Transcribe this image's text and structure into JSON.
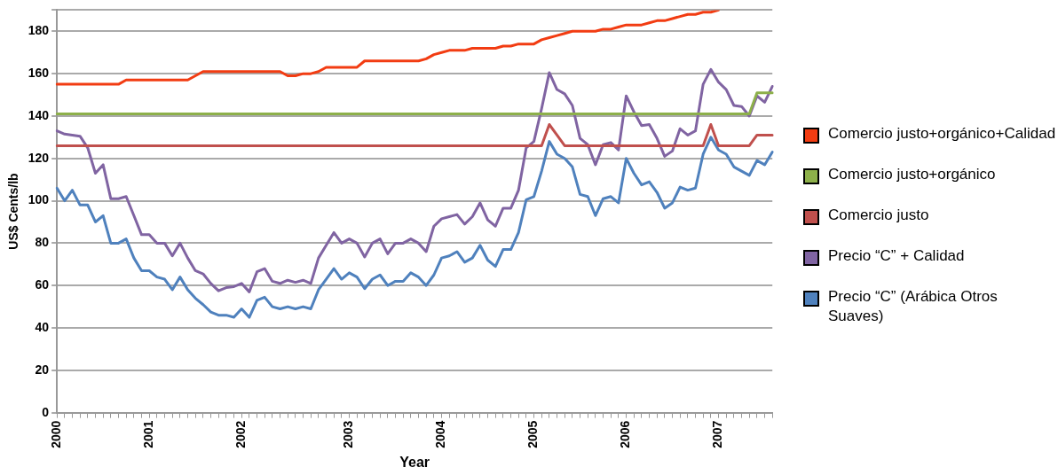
{
  "chart_data": {
    "type": "line",
    "xlabel": "Year",
    "ylabel": "US$ Cents/lb",
    "categories": [
      "2000",
      null,
      null,
      null,
      null,
      null,
      null,
      null,
      null,
      null,
      null,
      null,
      "2001",
      null,
      null,
      null,
      null,
      null,
      null,
      null,
      null,
      null,
      null,
      null,
      "2002",
      null,
      null,
      null,
      null,
      null,
      null,
      null,
      null,
      null,
      null,
      null,
      null,
      null,
      "2003",
      null,
      null,
      null,
      null,
      null,
      null,
      null,
      null,
      null,
      null,
      null,
      "2004",
      null,
      null,
      null,
      null,
      null,
      null,
      null,
      null,
      null,
      null,
      null,
      "2005",
      null,
      null,
      null,
      null,
      null,
      null,
      null,
      null,
      null,
      null,
      null,
      "2006",
      null,
      null,
      null,
      null,
      null,
      null,
      null,
      null,
      null,
      null,
      null,
      "2007",
      null,
      null,
      null,
      null,
      null,
      null,
      null
    ],
    "series": [
      {
        "name": "Comercio justo+orgánico+Calidad",
        "color": "#f23c12",
        "values": [
          155,
          155,
          155,
          155,
          155,
          155,
          155,
          155,
          155,
          157,
          157,
          157,
          157,
          157,
          157,
          157,
          157,
          157,
          159,
          161,
          161,
          161,
          161,
          161,
          161,
          161,
          161,
          161,
          161,
          161,
          159,
          159,
          160,
          160,
          161,
          163,
          163,
          163,
          163,
          163,
          166,
          166,
          166,
          166,
          166,
          166,
          166,
          166,
          167,
          169,
          170,
          171,
          171,
          171,
          172,
          172,
          172,
          172,
          173,
          173,
          174,
          174,
          174,
          176,
          177,
          178,
          179,
          180,
          180,
          180,
          180,
          181,
          181,
          182,
          183,
          183,
          183,
          184,
          185,
          185,
          186,
          187,
          188,
          188,
          189,
          189,
          190,
          null,
          null,
          null,
          null,
          null,
          null,
          null
        ]
      },
      {
        "name": "Comercio justo+orgánico",
        "color": "#8db04a",
        "values": [
          141,
          141,
          141,
          141,
          141,
          141,
          141,
          141,
          141,
          141,
          141,
          141,
          141,
          141,
          141,
          141,
          141,
          141,
          141,
          141,
          141,
          141,
          141,
          141,
          141,
          141,
          141,
          141,
          141,
          141,
          141,
          141,
          141,
          141,
          141,
          141,
          141,
          141,
          141,
          141,
          141,
          141,
          141,
          141,
          141,
          141,
          141,
          141,
          141,
          141,
          141,
          141,
          141,
          141,
          141,
          141,
          141,
          141,
          141,
          141,
          141,
          141,
          141,
          141,
          141,
          141,
          141,
          141,
          141,
          141,
          141,
          141,
          141,
          141,
          141,
          141,
          141,
          141,
          141,
          141,
          141,
          141,
          141,
          141,
          141,
          141,
          141,
          141,
          141,
          141,
          141,
          151,
          151,
          151
        ]
      },
      {
        "name": "Comercio justo",
        "color": "#c0504d",
        "values": [
          126,
          126,
          126,
          126,
          126,
          126,
          126,
          126,
          126,
          126,
          126,
          126,
          126,
          126,
          126,
          126,
          126,
          126,
          126,
          126,
          126,
          126,
          126,
          126,
          126,
          126,
          126,
          126,
          126,
          126,
          126,
          126,
          126,
          126,
          126,
          126,
          126,
          126,
          126,
          126,
          126,
          126,
          126,
          126,
          126,
          126,
          126,
          126,
          126,
          126,
          126,
          126,
          126,
          126,
          126,
          126,
          126,
          126,
          126,
          126,
          126,
          126,
          126,
          126,
          136,
          131,
          126,
          126,
          126,
          126,
          126,
          126,
          126,
          126,
          126,
          126,
          126,
          126,
          126,
          126,
          126,
          126,
          126,
          126,
          126,
          136,
          126,
          126,
          126,
          126,
          126,
          131,
          131,
          131
        ]
      },
      {
        "name": "Precio “C” + Calidad",
        "color": "#8064a2",
        "values": [
          133,
          131.5,
          131,
          130.5,
          125,
          113,
          117,
          101,
          101,
          102,
          93,
          84,
          84,
          80,
          80,
          74,
          80,
          73,
          67,
          65.5,
          61,
          57.5,
          59,
          59.5,
          61,
          57,
          66.5,
          68,
          62,
          61,
          62.5,
          61.5,
          62.5,
          61,
          73,
          79,
          85,
          80,
          82,
          80,
          73.5,
          80,
          82,
          75,
          80,
          80,
          82,
          80,
          76,
          88,
          91.5,
          92.5,
          93.5,
          89,
          92.5,
          99,
          91,
          88,
          96.5,
          96.5,
          105,
          125,
          128,
          143.5,
          160.5,
          152.5,
          150.5,
          145,
          129.5,
          126.5,
          117,
          126.5,
          127.5,
          124,
          149.5,
          142,
          135.5,
          136,
          129.5,
          121,
          123.5,
          134,
          131,
          133,
          155,
          162,
          156,
          152.5,
          145,
          144.5,
          140,
          149.5,
          146.5,
          154
        ]
      },
      {
        "name": "Precio “C” (Arábica Otros Suaves)",
        "color": "#4f81bd",
        "values": [
          106,
          100,
          105,
          98,
          98,
          90,
          93,
          80,
          80,
          82,
          73,
          67,
          67,
          64,
          63,
          58,
          64,
          58,
          54,
          51,
          47.5,
          46,
          46,
          45,
          49,
          45,
          53,
          54.5,
          50,
          49,
          50,
          49,
          50,
          49,
          58,
          63,
          68,
          63,
          66,
          64,
          58.5,
          63,
          65,
          60,
          62,
          62,
          66,
          64,
          60,
          65,
          73,
          74,
          76,
          71,
          73,
          79,
          72,
          69,
          77,
          77,
          85,
          100.5,
          102,
          114,
          128,
          122,
          120,
          116,
          103,
          102,
          93,
          101,
          102,
          99,
          120,
          113,
          107.5,
          109,
          104,
          96.5,
          99,
          106.5,
          105,
          106,
          122,
          130,
          124,
          122,
          116,
          114,
          112,
          119,
          117,
          123
        ]
      }
    ],
    "ylim": [
      0,
      190
    ],
    "yticks": [
      0,
      20,
      40,
      60,
      80,
      100,
      120,
      140,
      160,
      180,
      {
        "value": 190,
        "label": null
      }
    ],
    "grid": "y",
    "legend": "right",
    "marker": "none",
    "line_style": "solid"
  }
}
